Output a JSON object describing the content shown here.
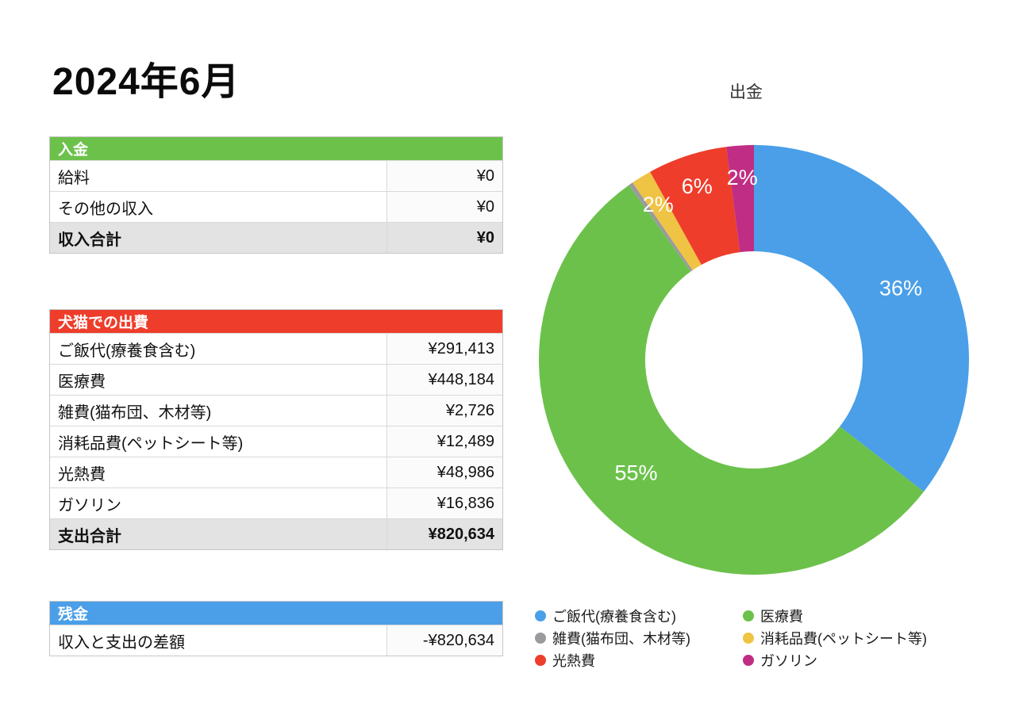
{
  "page": {
    "title": "2024年6月",
    "background": "#ffffff"
  },
  "tables": {
    "income": {
      "header": "入金",
      "header_color": "#6cc14b",
      "rows": [
        {
          "label": "給料",
          "value": "¥0"
        },
        {
          "label": "その他の収入",
          "value": "¥0"
        }
      ],
      "total": {
        "label": "収入合計",
        "value": "¥0"
      }
    },
    "expenses": {
      "header": "犬猫での出費",
      "header_color": "#ee3d2b",
      "rows": [
        {
          "label": "ご飯代(療養食含む)",
          "value": "¥291,413"
        },
        {
          "label": "医療費",
          "value": "¥448,184"
        },
        {
          "label": "雑費(猫布団、木材等)",
          "value": "¥2,726"
        },
        {
          "label": "消耗品費(ペットシート等)",
          "value": "¥12,489"
        },
        {
          "label": "光熱費",
          "value": "¥48,986"
        },
        {
          "label": "ガソリン",
          "value": "¥16,836"
        }
      ],
      "total": {
        "label": "支出合計",
        "value": "¥820,634"
      }
    },
    "balance": {
      "header": "残金",
      "header_color": "#4a9fe8",
      "rows": [
        {
          "label": "収入と支出の差額",
          "value": "-¥820,634"
        }
      ]
    }
  },
  "chart_data": {
    "type": "pie",
    "subtype": "donut",
    "title": "出金",
    "legend_position": "bottom",
    "total": 820634,
    "slices": [
      {
        "name": "ご飯代(療養食含む)",
        "value": 291413,
        "percent_label": "36%",
        "color": "#4a9fe8"
      },
      {
        "name": "医療費",
        "value": 448184,
        "percent_label": "55%",
        "color": "#6cc14b"
      },
      {
        "name": "雑費(猫布団、木材等)",
        "value": 2726,
        "percent_label": "",
        "color": "#9b9b9e"
      },
      {
        "name": "消耗品費(ペットシート等)",
        "value": 12489,
        "percent_label": "2%",
        "color": "#efc344"
      },
      {
        "name": "光熱費",
        "value": 48986,
        "percent_label": "6%",
        "color": "#ee3d2b"
      },
      {
        "name": "ガソリン",
        "value": 16836,
        "percent_label": "2%",
        "color": "#c02d84"
      }
    ]
  }
}
